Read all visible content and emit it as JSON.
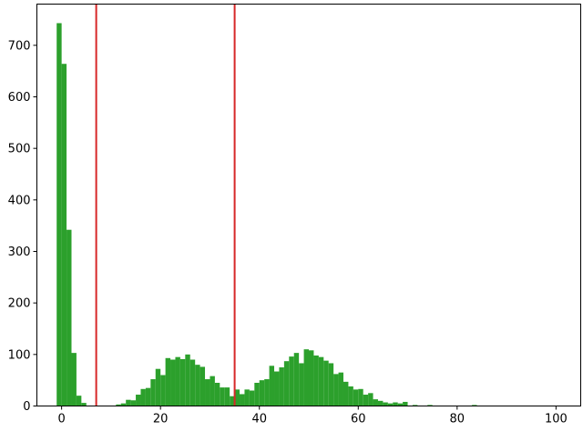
{
  "chart_data": {
    "type": "bar",
    "title": "",
    "xlabel": "",
    "ylabel": "",
    "xlim": [
      -5,
      105
    ],
    "ylim": [
      0,
      780
    ],
    "grid": false,
    "bin_width": 1,
    "bar_color": "#2ca02c",
    "vline_color": "#d62728",
    "bin_starts": [
      -1,
      0,
      1,
      2,
      3,
      4,
      5,
      6,
      7,
      8,
      9,
      10,
      11,
      12,
      13,
      14,
      15,
      16,
      17,
      18,
      19,
      20,
      21,
      22,
      23,
      24,
      25,
      26,
      27,
      28,
      29,
      30,
      31,
      32,
      33,
      34,
      35,
      36,
      37,
      38,
      39,
      40,
      41,
      42,
      43,
      44,
      45,
      46,
      47,
      48,
      49,
      50,
      51,
      52,
      53,
      54,
      55,
      56,
      57,
      58,
      59,
      60,
      61,
      62,
      63,
      64,
      65,
      66,
      67,
      68,
      69,
      70,
      71,
      72,
      73,
      74,
      75,
      76,
      77,
      78,
      79,
      80,
      81,
      82,
      83,
      84
    ],
    "counts": [
      743,
      664,
      342,
      103,
      20,
      6,
      0,
      0,
      0,
      0,
      0,
      0,
      3,
      5,
      12,
      11,
      22,
      33,
      35,
      52,
      72,
      60,
      93,
      90,
      95,
      91,
      100,
      90,
      80,
      76,
      52,
      58,
      45,
      36,
      36,
      19,
      32,
      23,
      32,
      30,
      45,
      50,
      52,
      78,
      67,
      75,
      87,
      96,
      103,
      83,
      110,
      108,
      98,
      95,
      88,
      83,
      62,
      65,
      47,
      38,
      32,
      33,
      22,
      25,
      13,
      10,
      7,
      5,
      7,
      5,
      8,
      0,
      2,
      0,
      0,
      2,
      0,
      0,
      0,
      0,
      0,
      0,
      0,
      0,
      2,
      0
    ],
    "vlines": [
      7,
      35
    ],
    "x_ticks": [
      0,
      20,
      40,
      60,
      80,
      100
    ],
    "x_tick_labels": [
      "0",
      "20",
      "40",
      "60",
      "80",
      "100"
    ],
    "y_ticks": [
      0,
      100,
      200,
      300,
      400,
      500,
      600,
      700
    ],
    "y_tick_labels": [
      "0",
      "100",
      "200",
      "300",
      "400",
      "500",
      "600",
      "700"
    ]
  }
}
